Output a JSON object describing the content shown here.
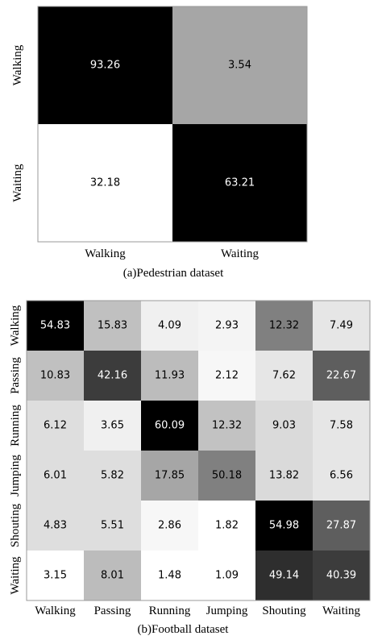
{
  "chart_data": [
    {
      "type": "heatmap",
      "title": "",
      "caption": "(a)Pedestrian dataset",
      "rows": [
        "Walking",
        "Waiting"
      ],
      "cols": [
        "Walking",
        "Waiting"
      ],
      "values": [
        [
          93.26,
          3.54
        ],
        [
          32.18,
          63.21
        ]
      ],
      "labels": [
        [
          "93.26",
          "3.54"
        ],
        [
          "32.18",
          "63.21"
        ]
      ],
      "colormap": "white-to-black",
      "cell_colors": [
        [
          "#000000",
          "#a6a6a6"
        ],
        [
          "#ffffff",
          "#000000"
        ]
      ],
      "text_colors": [
        [
          "#ffffff",
          "#000000"
        ],
        [
          "#000000",
          "#ffffff"
        ]
      ]
    },
    {
      "type": "heatmap",
      "title": "",
      "caption": "(b)Football dataset",
      "rows": [
        "Walking",
        "Passing",
        "Running",
        "Jumping",
        "Shouting",
        "Waiting"
      ],
      "cols": [
        "Walking",
        "Passing",
        "Running",
        "Jumping",
        "Shouting",
        "Waiting"
      ],
      "values": [
        [
          54.83,
          15.83,
          4.09,
          2.93,
          12.32,
          7.49
        ],
        [
          10.83,
          42.16,
          11.93,
          2.12,
          7.62,
          22.67
        ],
        [
          6.12,
          3.65,
          60.09,
          12.32,
          9.03,
          7.58
        ],
        [
          6.01,
          5.82,
          17.85,
          50.18,
          13.82,
          6.56
        ],
        [
          4.83,
          5.51,
          2.86,
          1.82,
          54.98,
          27.87
        ],
        [
          3.15,
          8.01,
          1.48,
          1.09,
          49.14,
          40.39
        ]
      ],
      "labels": [
        [
          "54.83",
          "15.83",
          "4.09",
          "2.93",
          "12.32",
          "7.49"
        ],
        [
          "10.83",
          "42.16",
          "11.93",
          "2.12",
          "7.62",
          "22.67"
        ],
        [
          "6.12",
          "3.65",
          "60.09",
          "12.32",
          "9.03",
          "7.58"
        ],
        [
          "6.01",
          "5.82",
          "17.85",
          "50.18",
          "13.82",
          "6.56"
        ],
        [
          "4.83",
          "5.51",
          "2.86",
          "1.82",
          "54.98",
          "27.87"
        ],
        [
          "3.15",
          "8.01",
          "1.48",
          "1.09",
          "49.14",
          "40.39"
        ]
      ],
      "colormap": "white-to-black",
      "cell_colors": [
        [
          "#000000",
          "#c0c0c0",
          "#f0f0f0",
          "#f4f4f4",
          "#808080",
          "#e6e6e6"
        ],
        [
          "#c0c0c0",
          "#3c3c3c",
          "#bcbcbc",
          "#f7f7f7",
          "#e6e6e6",
          "#5e5e5e"
        ],
        [
          "#dedede",
          "#f0f0f0",
          "#000000",
          "#c2c2c2",
          "#dadada",
          "#e6e6e6"
        ],
        [
          "#dedede",
          "#dedede",
          "#a6a6a6",
          "#808080",
          "#dadada",
          "#e6e6e6"
        ],
        [
          "#dedede",
          "#dedede",
          "#f7f7f7",
          "#ffffff",
          "#000000",
          "#5e5e5e"
        ],
        [
          "#ffffff",
          "#bcbcbc",
          "#ffffff",
          "#ffffff",
          "#2e2e2e",
          "#3c3c3c"
        ]
      ],
      "text_colors": [
        [
          "#ffffff",
          "#000000",
          "#000000",
          "#000000",
          "#000000",
          "#000000"
        ],
        [
          "#000000",
          "#ffffff",
          "#000000",
          "#000000",
          "#000000",
          "#ffffff"
        ],
        [
          "#000000",
          "#000000",
          "#ffffff",
          "#000000",
          "#000000",
          "#000000"
        ],
        [
          "#000000",
          "#000000",
          "#000000",
          "#000000",
          "#000000",
          "#000000"
        ],
        [
          "#000000",
          "#000000",
          "#000000",
          "#000000",
          "#ffffff",
          "#ffffff"
        ],
        [
          "#000000",
          "#000000",
          "#000000",
          "#000000",
          "#ffffff",
          "#ffffff"
        ]
      ]
    }
  ]
}
